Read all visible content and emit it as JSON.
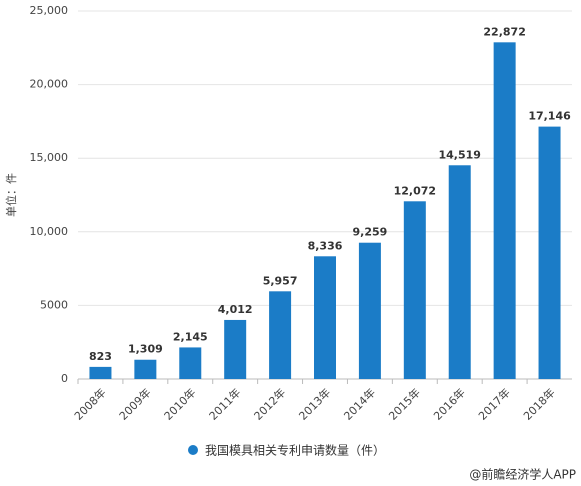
{
  "chart_data": {
    "type": "bar",
    "y_label": "单位：件",
    "categories": [
      "2008年",
      "2009年",
      "2010年",
      "2011年",
      "2012年",
      "2013年",
      "2014年",
      "2015年",
      "2016年",
      "2017年",
      "2018年"
    ],
    "series": [
      {
        "name": "我国模具相关专利申请数量（件）",
        "color": "#1b7cc7",
        "values": [
          823,
          1309,
          2145,
          4012,
          5957,
          8336,
          9259,
          12072,
          14519,
          22872,
          17146
        ],
        "value_labels": [
          "823",
          "1,309",
          "2,145",
          "4,012",
          "5,957",
          "8,336",
          "9,259",
          "12,072",
          "14,519",
          "22,872",
          "17,146"
        ]
      }
    ],
    "ylim": [
      0,
      25000
    ],
    "yticks": [
      0,
      5000,
      {
        "value": 10000,
        "label": "10,000"
      },
      {
        "value": 15000,
        "label": "15,000"
      },
      {
        "value": 20000,
        "label": "20,000"
      },
      {
        "value": 25000,
        "label": "25,000"
      }
    ],
    "grid": true,
    "legend": "bottom",
    "source": "@前瞻经济学人APP"
  }
}
